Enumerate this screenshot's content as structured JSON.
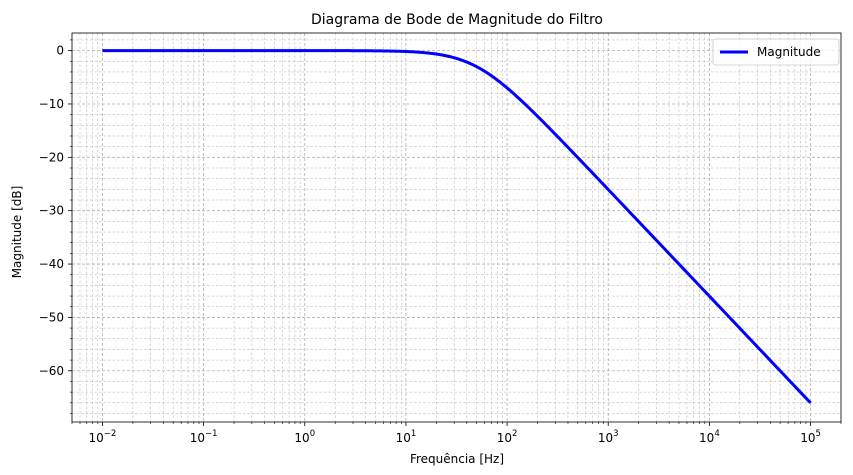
{
  "chart_data": {
    "type": "line",
    "title": "Diagrama de Bode de Magnitude do Filtro",
    "xlabel": "Frequência [Hz]",
    "ylabel": "Magnitude [dB]",
    "xscale": "log",
    "xlim": [
      0.005,
      200000
    ],
    "ylim": [
      -69.6,
      3.3
    ],
    "grid": true,
    "grid_minor": true,
    "legend_position": "top-right",
    "x_ticks": [
      {
        "exp": "−2",
        "value": 0.01
      },
      {
        "exp": "−1",
        "value": 0.1
      },
      {
        "exp": "0",
        "value": 1
      },
      {
        "exp": "1",
        "value": 10
      },
      {
        "exp": "2",
        "value": 100
      },
      {
        "exp": "3",
        "value": 1000
      },
      {
        "exp": "4",
        "value": 10000
      },
      {
        "exp": "5",
        "value": 100000
      }
    ],
    "x_tick_base": "10",
    "y_ticks": [
      {
        "label": "0",
        "value": 0
      },
      {
        "label": "−10",
        "value": -10
      },
      {
        "label": "−20",
        "value": -20
      },
      {
        "label": "−30",
        "value": -30
      },
      {
        "label": "−40",
        "value": -40
      },
      {
        "label": "−50",
        "value": -50
      },
      {
        "label": "−60",
        "value": -60
      }
    ],
    "series": [
      {
        "name": "Magnitude",
        "color": "#0000ff",
        "cutoff_hz": 50,
        "x": [
          0.01,
          0.1,
          1,
          5,
          10,
          20,
          30,
          40,
          50,
          60,
          70,
          80,
          100,
          150,
          200,
          300,
          500,
          1000,
          2000,
          5000,
          10000,
          20000,
          50000,
          100000
        ],
        "y": [
          0,
          0,
          0,
          -0.04,
          -0.17,
          -0.64,
          -1.34,
          -2.15,
          -3.01,
          -3.87,
          -4.7,
          -5.48,
          -6.99,
          -10.0,
          -12.3,
          -15.7,
          -20.0,
          -26.0,
          -32.0,
          -40.0,
          -46.0,
          -52.0,
          -60.0,
          -66.0
        ]
      }
    ]
  }
}
